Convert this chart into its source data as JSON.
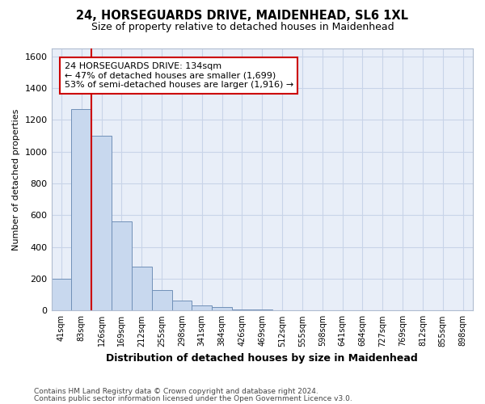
{
  "title1": "24, HORSEGUARDS DRIVE, MAIDENHEAD, SL6 1XL",
  "title2": "Size of property relative to detached houses in Maidenhead",
  "xlabel": "Distribution of detached houses by size in Maidenhead",
  "ylabel": "Number of detached properties",
  "footer1": "Contains HM Land Registry data © Crown copyright and database right 2024.",
  "footer2": "Contains public sector information licensed under the Open Government Licence v3.0.",
  "bar_labels": [
    "41sqm",
    "83sqm",
    "126sqm",
    "169sqm",
    "212sqm",
    "255sqm",
    "298sqm",
    "341sqm",
    "384sqm",
    "426sqm",
    "469sqm",
    "512sqm",
    "555sqm",
    "598sqm",
    "641sqm",
    "684sqm",
    "727sqm",
    "769sqm",
    "812sqm",
    "855sqm",
    "898sqm"
  ],
  "bar_values": [
    200,
    1270,
    1100,
    560,
    275,
    130,
    65,
    30,
    20,
    8,
    5,
    3,
    3,
    2,
    1,
    1,
    1,
    0,
    1,
    0,
    0
  ],
  "bar_color": "#c8d8ee",
  "bar_edge_color": "#7090b8",
  "grid_color": "#c8d4e8",
  "background_color": "#e8eef8",
  "ylim": [
    0,
    1650
  ],
  "yticks": [
    0,
    200,
    400,
    600,
    800,
    1000,
    1200,
    1400,
    1600
  ],
  "red_line_color": "#cc0000",
  "annotation_line1": "24 HORSEGUARDS DRIVE: 134sqm",
  "annotation_line2": "← 47% of detached houses are smaller (1,699)",
  "annotation_line3": "53% of semi-detached houses are larger (1,916) →",
  "annotation_box_color": "#cc0000"
}
